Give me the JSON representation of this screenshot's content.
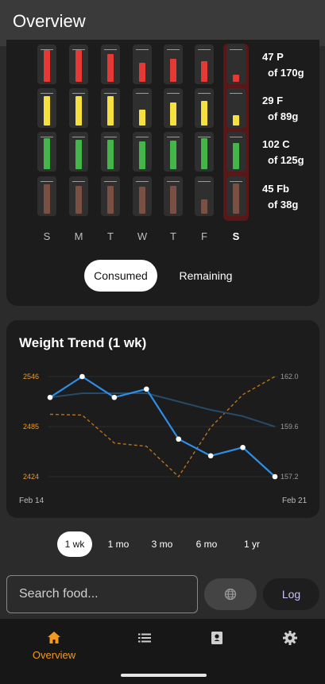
{
  "app_bar": {
    "title": "Overview"
  },
  "macro_grid": {
    "days": [
      "S",
      "M",
      "T",
      "W",
      "T",
      "F",
      "S"
    ],
    "today_index": 6,
    "rows": [
      {
        "key": "protein",
        "color": "#e53935",
        "fills": [
          1.0,
          1.0,
          0.88,
          0.6,
          0.72,
          0.66,
          0.22
        ],
        "label_line1": "47 P",
        "label_line2": "of 170g"
      },
      {
        "key": "fat",
        "color": "#f5e040",
        "fills": [
          0.93,
          0.93,
          0.93,
          0.5,
          0.72,
          0.78,
          0.32
        ],
        "label_line1": "29 F",
        "label_line2": "of 89g"
      },
      {
        "key": "carbs",
        "color": "#43b649",
        "fills": [
          0.98,
          0.93,
          0.93,
          0.88,
          0.91,
          0.98,
          0.82
        ],
        "label_line1": "102 C",
        "label_line2": "of 125g"
      },
      {
        "key": "fiber",
        "color": "#7a5042",
        "fills": [
          0.93,
          0.88,
          0.88,
          0.85,
          0.88,
          0.45,
          0.96
        ],
        "label_line1": "45 Fb",
        "label_line2": "of 38g"
      }
    ]
  },
  "view_toggle": {
    "consumed": "Consumed",
    "remaining": "Remaining",
    "selected": "consumed"
  },
  "weight_card": {
    "title": "Weight Trend (1 wk)"
  },
  "chart_data": {
    "type": "line",
    "title": "Weight Trend (1 wk)",
    "x_labels": [
      "Feb 14",
      "Feb 21"
    ],
    "x": [
      0,
      1,
      2,
      3,
      4,
      5,
      6,
      7
    ],
    "left_axis": {
      "ticks": [
        "2546",
        "2485",
        "2424"
      ],
      "range": [
        2424,
        2546
      ],
      "color": "#f39a1e"
    },
    "right_axis": {
      "ticks": [
        "162.0",
        "159.6",
        "157.2"
      ],
      "range": [
        157.2,
        162.0
      ],
      "color": "#9a9a9a"
    },
    "series": [
      {
        "axis": "right",
        "style": "points",
        "color": "#2e8ee6",
        "values": [
          161.0,
          162.0,
          161.0,
          161.4,
          159.0,
          158.2,
          158.6,
          157.2
        ]
      },
      {
        "axis": "right",
        "style": "trend",
        "color": "#274a66",
        "values": [
          161.0,
          161.2,
          161.2,
          161.2,
          160.8,
          160.4,
          160.1,
          159.6
        ]
      },
      {
        "axis": "left",
        "style": "dashed",
        "color": "#b8731e",
        "values": [
          2500,
          2499,
          2465,
          2461,
          2424,
          2484,
          2524,
          2546
        ]
      }
    ]
  },
  "range_buttons": [
    {
      "label": "1 wk"
    },
    {
      "label": "1 mo"
    },
    {
      "label": "3 mo"
    },
    {
      "label": "6 mo"
    },
    {
      "label": "1 yr"
    }
  ],
  "range_selected": "1 wk",
  "search": {
    "placeholder": "Search food..."
  },
  "globe_icon": "globe-icon",
  "log_button": {
    "label": "Log"
  },
  "bottom_nav": [
    {
      "icon": "home-icon",
      "label": "Overview",
      "active": true
    },
    {
      "icon": "list-icon",
      "label": ""
    },
    {
      "icon": "book-icon",
      "label": ""
    },
    {
      "icon": "gear-icon",
      "label": ""
    }
  ]
}
